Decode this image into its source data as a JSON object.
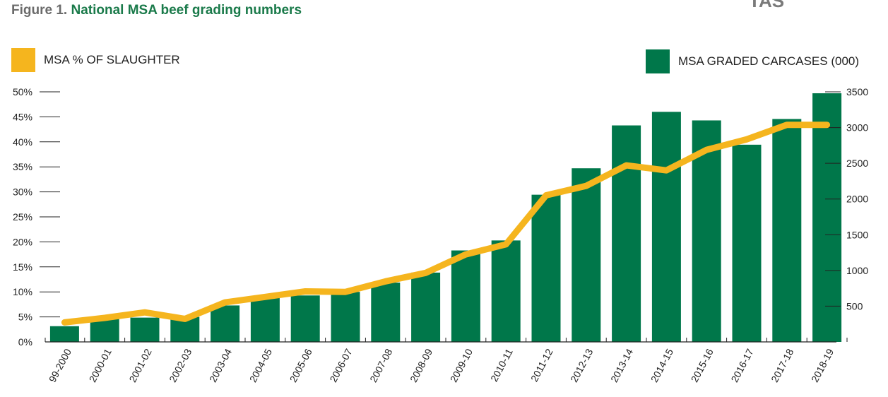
{
  "figure": {
    "number": "Figure 1.",
    "title": "National MSA beef grading numbers",
    "corner_text": "TAS"
  },
  "legend": {
    "line_label": "MSA % OF SLAUGHTER",
    "bar_label": "MSA GRADED CARCASES (000)"
  },
  "colors": {
    "bar": "#00774a",
    "line": "#f5b51e",
    "title": "#1a7a4a"
  },
  "chart_data": {
    "type": "bar",
    "title": "National MSA beef grading numbers",
    "categories": [
      "99-2000",
      "2000-01",
      "2001-02",
      "2002-03",
      "2003-04",
      "2004-05",
      "2005-06",
      "2006-07",
      "2007-08",
      "2008-09",
      "2009-10",
      "2010-11",
      "2011-12",
      "2012-13",
      "2013-14",
      "2014-15",
      "2015-16",
      "2016-17",
      "2017-18",
      "2018-19"
    ],
    "series": [
      {
        "name": "MSA GRADED CARCASES (000)",
        "type": "bar",
        "axis": "right",
        "values": [
          220,
          320,
          340,
          350,
          510,
          620,
          650,
          700,
          830,
          970,
          1280,
          1420,
          2060,
          2430,
          3030,
          3220,
          3100,
          2760,
          3120,
          3480
        ]
      },
      {
        "name": "MSA % OF SLAUGHTER",
        "type": "line",
        "axis": "left",
        "values": [
          3.9,
          4.8,
          5.9,
          4.6,
          7.9,
          9.0,
          10.1,
          10.0,
          12.1,
          13.8,
          17.5,
          19.5,
          29.3,
          31.2,
          35.3,
          34.3,
          38.4,
          40.5,
          43.4,
          43.4
        ]
      }
    ],
    "left_axis": {
      "ylim": [
        0,
        50
      ],
      "ticks": [
        0,
        5,
        10,
        15,
        20,
        25,
        30,
        35,
        40,
        45,
        50
      ],
      "tick_labels": [
        "0%",
        "5%",
        "10%",
        "15%",
        "20%",
        "25%",
        "30%",
        "35%",
        "40%",
        "45%",
        "50%"
      ]
    },
    "right_axis": {
      "ylim": [
        0,
        3500
      ],
      "ticks": [
        500,
        1000,
        1500,
        2000,
        2500,
        3000,
        3500
      ],
      "tick_labels": [
        "500",
        "1000",
        "1500",
        "2000",
        "2500",
        "3000",
        "3500"
      ]
    },
    "grid": false,
    "legend_placement": "top"
  }
}
